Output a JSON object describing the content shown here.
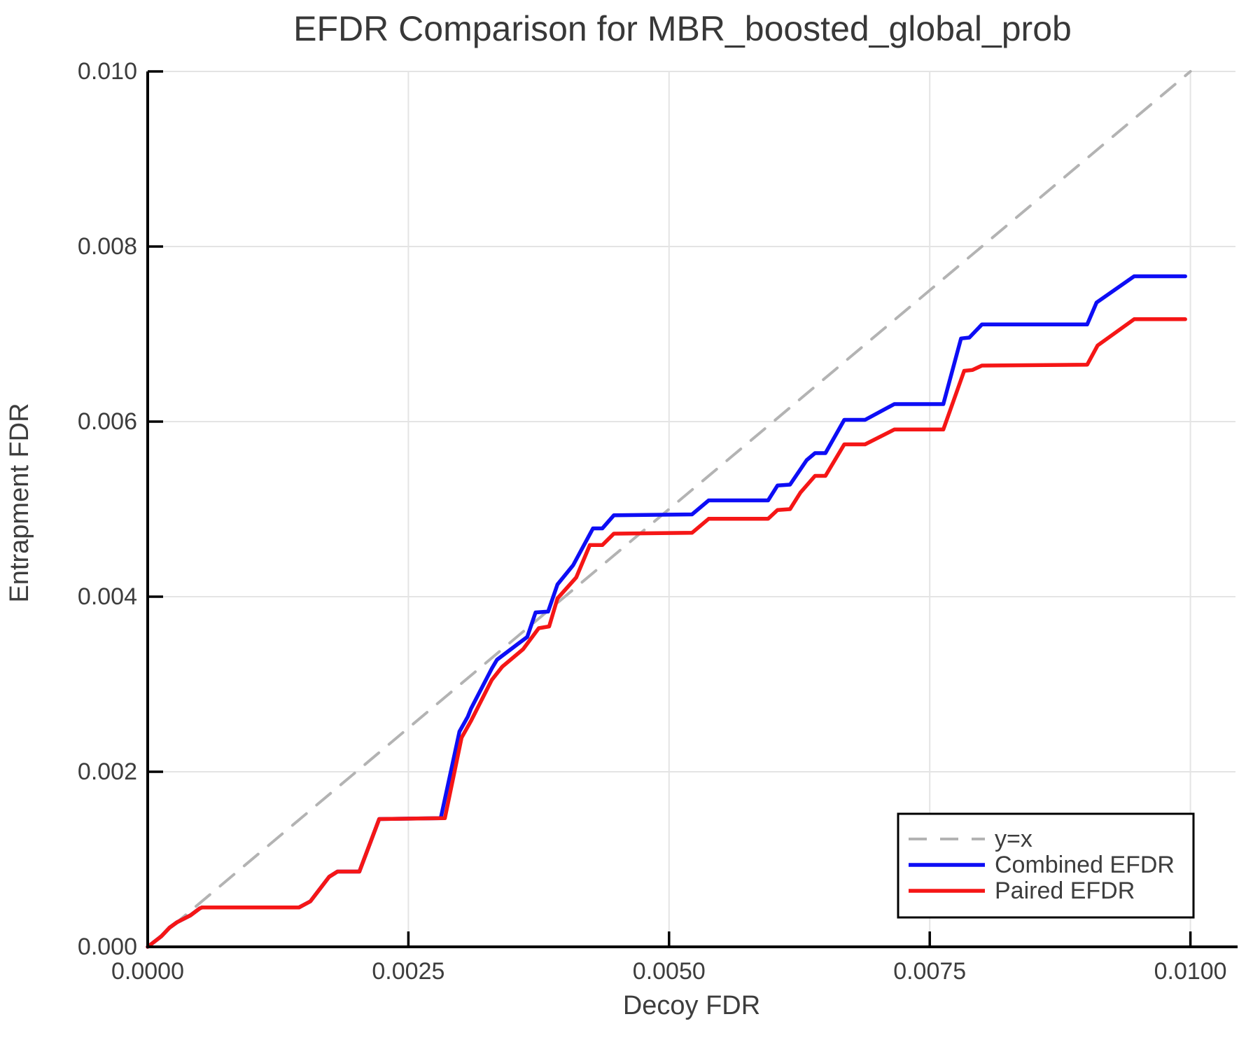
{
  "chart_data": {
    "type": "line",
    "title": "EFDR Comparison for MBR_boosted_global_prob",
    "xlabel": "Decoy FDR",
    "ylabel": "Entrapment FDR",
    "xlim": [
      0,
      0.01043
    ],
    "ylim": [
      0,
      0.0101
    ],
    "grid": true,
    "legend_position": "bottom-right",
    "style": {
      "background": "#ffffff",
      "grid_color": "#e4e4e4",
      "spine_color": "#000000",
      "text_color": "#3d3d3d",
      "legend_border_color": "#000000"
    },
    "xticks": {
      "values": [
        0,
        0.0025,
        0.005,
        0.0075,
        0.01
      ],
      "labels": [
        "0.0000",
        "0.0025",
        "0.0050",
        "0.0075",
        "0.0100"
      ]
    },
    "yticks": {
      "values": [
        0,
        0.002,
        0.004,
        0.006,
        0.008,
        0.01
      ],
      "labels": [
        "0.000",
        "0.002",
        "0.004",
        "0.006",
        "0.008",
        "0.010"
      ]
    },
    "series": [
      {
        "name": "y=x",
        "style": "dashed",
        "color": "#b3b3b3",
        "width": 4,
        "points": [
          [
            0,
            0
          ],
          [
            0.01,
            0.01
          ]
        ]
      },
      {
        "name": "Combined EFDR",
        "style": "solid",
        "color": "#0d0df5",
        "width": 5.5,
        "points": [
          [
            0.0,
            0.0
          ],
          [
            0.00013,
            0.00012
          ],
          [
            0.00021,
            0.00022
          ],
          [
            0.00028,
            0.00028
          ],
          [
            0.00041,
            0.00036
          ],
          [
            0.0005,
            0.00044
          ],
          [
            0.00052,
            0.00045
          ],
          [
            0.00145,
            0.00045
          ],
          [
            0.00156,
            0.00052
          ],
          [
            0.00174,
            0.0008
          ],
          [
            0.00182,
            0.00086
          ],
          [
            0.00203,
            0.00086
          ],
          [
            0.00222,
            0.00146
          ],
          [
            0.00281,
            0.00147
          ],
          [
            0.00299,
            0.00246
          ],
          [
            0.00307,
            0.00263
          ],
          [
            0.0031,
            0.00272
          ],
          [
            0.0033,
            0.00318
          ],
          [
            0.00335,
            0.00328
          ],
          [
            0.00355,
            0.00346
          ],
          [
            0.00364,
            0.00354
          ],
          [
            0.00372,
            0.00382
          ],
          [
            0.00384,
            0.00383
          ],
          [
            0.00393,
            0.00414
          ],
          [
            0.00408,
            0.00436
          ],
          [
            0.00427,
            0.00478
          ],
          [
            0.00436,
            0.00478
          ],
          [
            0.00447,
            0.00493
          ],
          [
            0.00522,
            0.00494
          ],
          [
            0.00538,
            0.0051
          ],
          [
            0.00595,
            0.0051
          ],
          [
            0.00604,
            0.00527
          ],
          [
            0.00616,
            0.00528
          ],
          [
            0.00632,
            0.00556
          ],
          [
            0.0064,
            0.00564
          ],
          [
            0.0065,
            0.00564
          ],
          [
            0.00668,
            0.00602
          ],
          [
            0.00688,
            0.00602
          ],
          [
            0.00716,
            0.0062
          ],
          [
            0.00763,
            0.0062
          ],
          [
            0.0078,
            0.00695
          ],
          [
            0.00788,
            0.00696
          ],
          [
            0.008,
            0.00711
          ],
          [
            0.00901,
            0.00711
          ],
          [
            0.0091,
            0.00736
          ],
          [
            0.00946,
            0.00766
          ],
          [
            0.00995,
            0.00766
          ]
        ]
      },
      {
        "name": "Paired EFDR",
        "style": "solid",
        "color": "#f51616",
        "width": 5.5,
        "points": [
          [
            0.0,
            0.0
          ],
          [
            0.00013,
            0.00012
          ],
          [
            0.00021,
            0.00022
          ],
          [
            0.00028,
            0.00028
          ],
          [
            0.00041,
            0.00036
          ],
          [
            0.0005,
            0.00044
          ],
          [
            0.00052,
            0.00045
          ],
          [
            0.00145,
            0.00045
          ],
          [
            0.00156,
            0.00052
          ],
          [
            0.00174,
            0.0008
          ],
          [
            0.00182,
            0.00086
          ],
          [
            0.00203,
            0.00086
          ],
          [
            0.00222,
            0.00146
          ],
          [
            0.00285,
            0.00147
          ],
          [
            0.00301,
            0.00239
          ],
          [
            0.0031,
            0.00258
          ],
          [
            0.0033,
            0.00305
          ],
          [
            0.0034,
            0.0032
          ],
          [
            0.0036,
            0.0034
          ],
          [
            0.00375,
            0.00364
          ],
          [
            0.00385,
            0.00366
          ],
          [
            0.00393,
            0.00398
          ],
          [
            0.00411,
            0.00422
          ],
          [
            0.00424,
            0.00459
          ],
          [
            0.00436,
            0.00459
          ],
          [
            0.00447,
            0.00472
          ],
          [
            0.00522,
            0.00473
          ],
          [
            0.00538,
            0.00489
          ],
          [
            0.00595,
            0.00489
          ],
          [
            0.00604,
            0.00499
          ],
          [
            0.00616,
            0.005
          ],
          [
            0.00626,
            0.00519
          ],
          [
            0.0064,
            0.00538
          ],
          [
            0.0065,
            0.00538
          ],
          [
            0.00668,
            0.00574
          ],
          [
            0.00688,
            0.00574
          ],
          [
            0.00716,
            0.00591
          ],
          [
            0.00763,
            0.00591
          ],
          [
            0.00783,
            0.00658
          ],
          [
            0.00791,
            0.00659
          ],
          [
            0.008,
            0.00664
          ],
          [
            0.00901,
            0.00665
          ],
          [
            0.00911,
            0.00687
          ],
          [
            0.00946,
            0.00717
          ],
          [
            0.00995,
            0.00717
          ]
        ]
      }
    ]
  }
}
